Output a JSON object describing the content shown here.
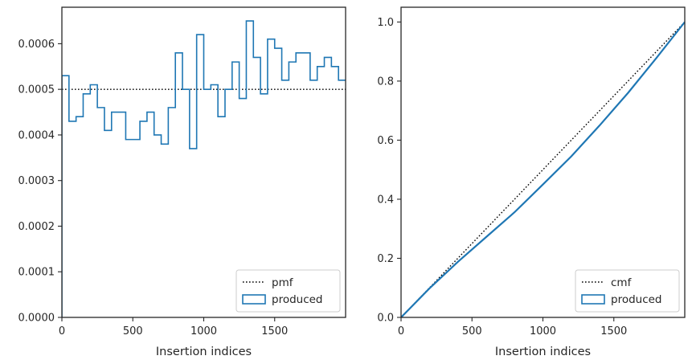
{
  "chart_data": [
    {
      "type": "step",
      "xlabel": "Insertion indices",
      "ylabel": "",
      "xlim": [
        0,
        2000
      ],
      "ylim": [
        0,
        0.00068
      ],
      "xticks": [
        0,
        500,
        1000,
        1500
      ],
      "xtick_labels": [
        "0",
        "500",
        "1000",
        "1500"
      ],
      "yticks": [
        0,
        0.0001,
        0.0002,
        0.0003,
        0.0004,
        0.0005,
        0.0006
      ],
      "ytick_labels": [
        "0.0000",
        "0.0001",
        "0.0002",
        "0.0003",
        "0.0004",
        "0.0005",
        "0.0006"
      ],
      "legend_position": "lower-right",
      "series": [
        {
          "name": "pmf",
          "style": "dotted",
          "color": "#000000",
          "x": [
            0,
            2000
          ],
          "values": [
            0.0005,
            0.0005
          ]
        },
        {
          "name": "produced",
          "style": "step-histogram",
          "color": "#1f77b4",
          "bin_width": 50,
          "bin_start": 0,
          "values": [
            0.00053,
            0.00043,
            0.00044,
            0.00049,
            0.00051,
            0.00046,
            0.00041,
            0.00045,
            0.00045,
            0.00039,
            0.00039,
            0.00043,
            0.00045,
            0.0004,
            0.00038,
            0.00046,
            0.00058,
            0.0005,
            0.00037,
            0.00062,
            0.0005,
            0.00051,
            0.00044,
            0.0005,
            0.00056,
            0.00048,
            0.00065,
            0.00057,
            0.00049,
            0.00061,
            0.00059,
            0.00052,
            0.00056,
            0.00058,
            0.00058,
            0.00052,
            0.00055,
            0.00057,
            0.00055,
            0.00052
          ]
        }
      ]
    },
    {
      "type": "line",
      "xlabel": "Insertion indices",
      "ylabel": "",
      "xlim": [
        0,
        2000
      ],
      "ylim": [
        0,
        1.05
      ],
      "xticks": [
        0,
        500,
        1000,
        1500
      ],
      "xtick_labels": [
        "0",
        "500",
        "1000",
        "1500"
      ],
      "yticks": [
        0,
        0.2,
        0.4,
        0.6,
        0.8,
        1.0
      ],
      "ytick_labels": [
        "0.0",
        "0.2",
        "0.4",
        "0.6",
        "0.8",
        "1.0"
      ],
      "legend_position": "lower-right",
      "series": [
        {
          "name": "cmf",
          "style": "dotted",
          "color": "#000000",
          "x": [
            0,
            2000
          ],
          "values": [
            0,
            1.0
          ]
        },
        {
          "name": "produced",
          "style": "step-cumulative",
          "color": "#1f77b4",
          "x": [
            0,
            200,
            400,
            600,
            800,
            1000,
            1200,
            1400,
            1600,
            1800,
            2000
          ],
          "values": [
            0,
            0.098,
            0.188,
            0.272,
            0.356,
            0.45,
            0.545,
            0.65,
            0.76,
            0.878,
            1.0
          ]
        }
      ]
    }
  ]
}
